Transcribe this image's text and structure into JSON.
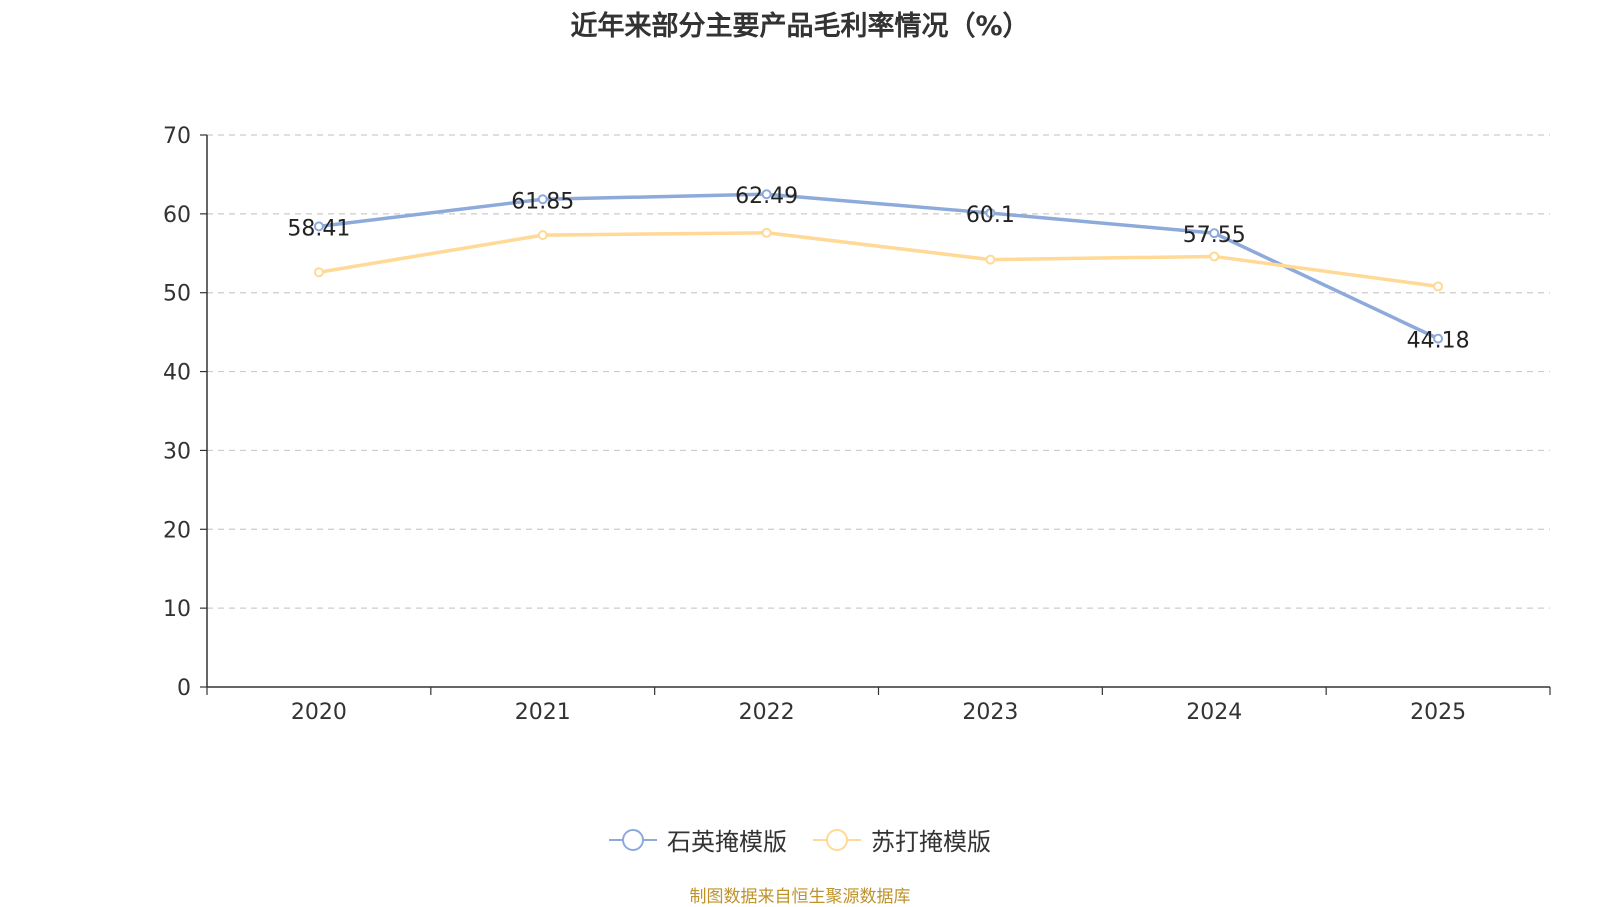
{
  "chart_data": {
    "type": "line",
    "title": "近年来部分主要产品毛利率情况（%）",
    "categories": [
      "2020",
      "2021",
      "2022",
      "2023",
      "2024",
      "2025"
    ],
    "ylim": [
      0,
      70
    ],
    "yticks": [
      0,
      10,
      20,
      30,
      40,
      50,
      60,
      70
    ],
    "grid": true,
    "legend_position": "bottom-center",
    "series": [
      {
        "name": "石英掩模版",
        "color": "#8eaadb",
        "values": [
          58.41,
          61.85,
          62.49,
          60.1,
          57.55,
          44.18
        ],
        "labels": [
          "58.41",
          "61.85",
          "62.49",
          "60.1",
          "57.55",
          "44.18"
        ],
        "show_labels": true
      },
      {
        "name": "苏打掩模版",
        "color": "#ffd995",
        "values": [
          52.6,
          57.3,
          57.6,
          54.2,
          54.6,
          50.8
        ],
        "show_labels": false
      }
    ]
  },
  "source_note": "制图数据来自恒生聚源数据库"
}
